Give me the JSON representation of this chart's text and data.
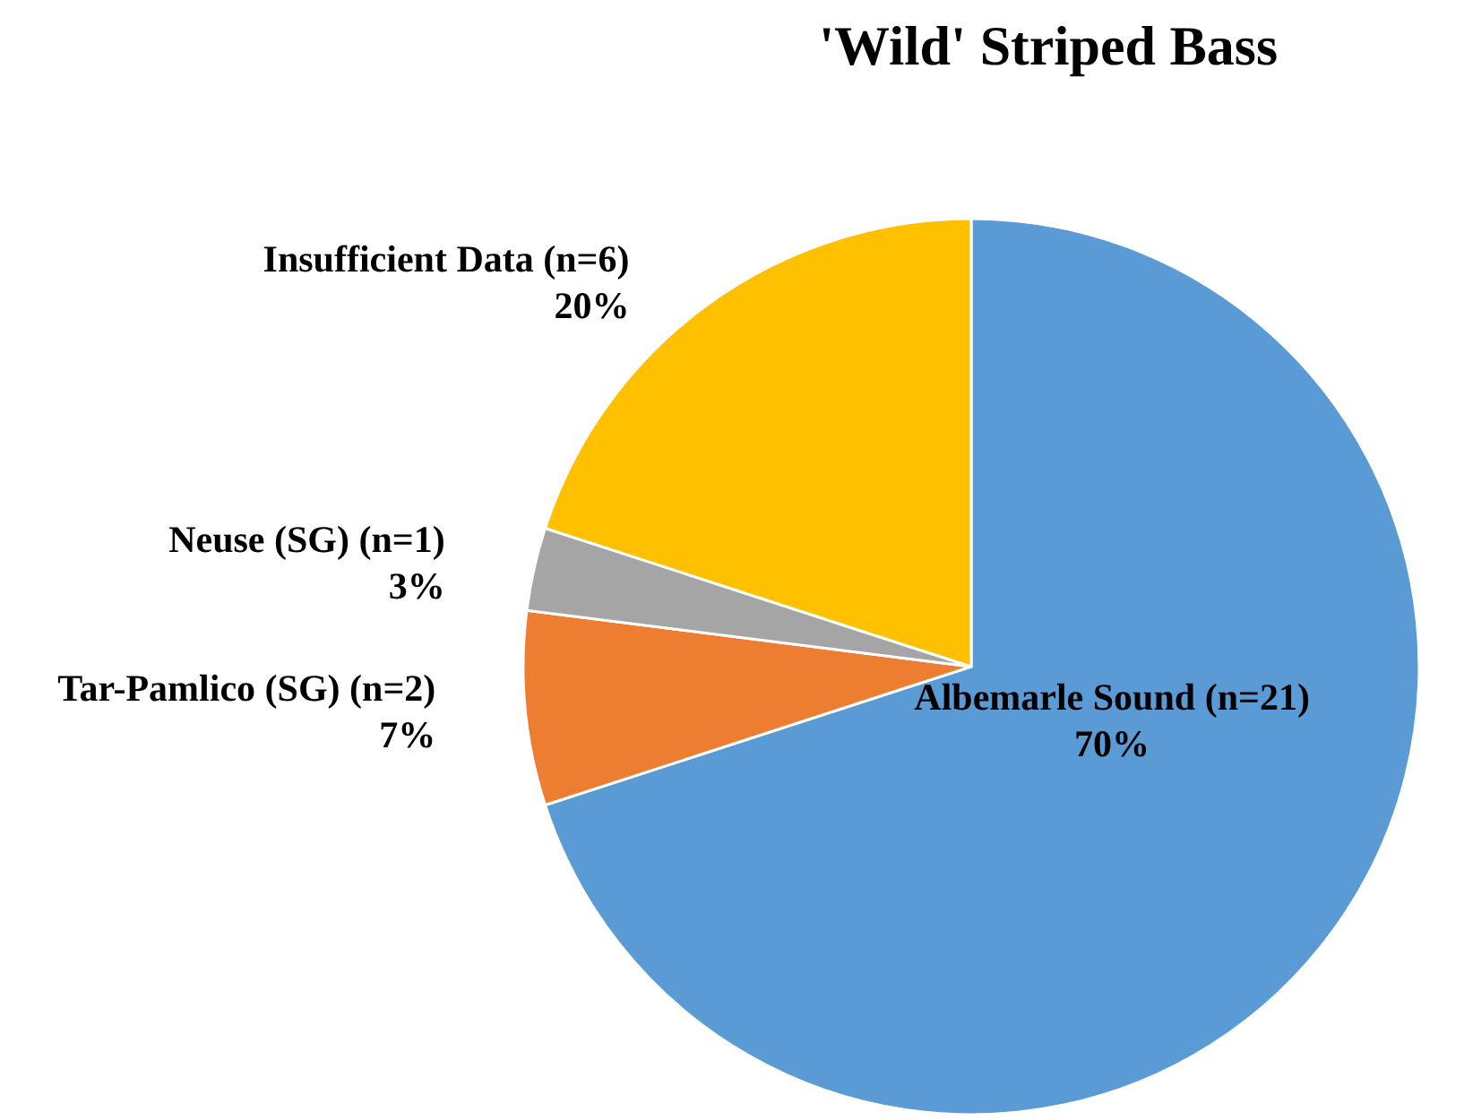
{
  "chart_data": {
    "type": "pie",
    "title": "'Wild' Striped Bass",
    "categories": [
      "Albemarle Sound (n=21)",
      "Tar-Pamlico (SG) (n=2)",
      "Neuse (SG) (n=1)",
      "Insufficient Data (n=6)"
    ],
    "values": [
      70,
      7,
      3,
      20
    ],
    "colors": [
      "#5b9bd5",
      "#ed7d31",
      "#a5a5a5",
      "#ffc000"
    ],
    "value_labels": [
      "70%",
      "7%",
      "3%",
      "20%"
    ],
    "legend": false
  }
}
